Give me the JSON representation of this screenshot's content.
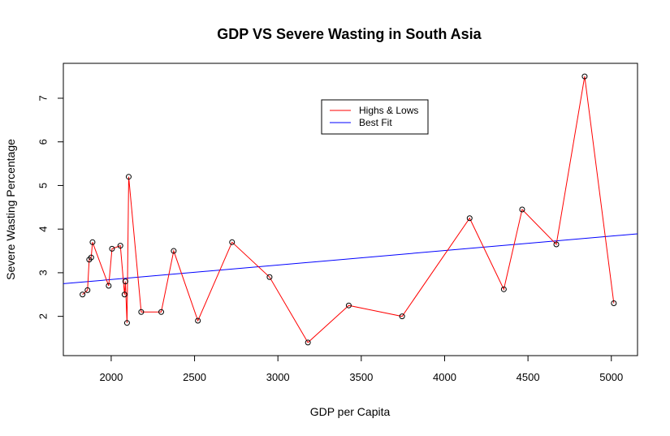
{
  "chart_data": {
    "type": "line",
    "title": "GDP VS Severe Wasting in South Asia",
    "xlabel": "GDP per Capita",
    "ylabel": "Severe Wasting Percentage",
    "xlim": [
      1713,
      5157
    ],
    "ylim": [
      1.1,
      7.8
    ],
    "x_ticks": [
      2000,
      2500,
      3000,
      3500,
      4000,
      4500,
      5000
    ],
    "y_ticks": [
      2,
      3,
      4,
      5,
      6,
      7
    ],
    "grid": false,
    "legend_position": "top-center",
    "series": [
      {
        "name": "Highs & Lows",
        "color": "#ff0000",
        "points": [
          {
            "x": 1828,
            "y": 2.5
          },
          {
            "x": 1858,
            "y": 2.6
          },
          {
            "x": 1868,
            "y": 3.3
          },
          {
            "x": 1880,
            "y": 3.35
          },
          {
            "x": 1888,
            "y": 3.7
          },
          {
            "x": 1985,
            "y": 2.7
          },
          {
            "x": 2005,
            "y": 3.55
          },
          {
            "x": 2055,
            "y": 3.62
          },
          {
            "x": 2080,
            "y": 2.5
          },
          {
            "x": 2085,
            "y": 2.8
          },
          {
            "x": 2095,
            "y": 1.85
          },
          {
            "x": 2105,
            "y": 5.2
          },
          {
            "x": 2180,
            "y": 2.1
          },
          {
            "x": 2300,
            "y": 2.1
          },
          {
            "x": 2375,
            "y": 3.5
          },
          {
            "x": 2520,
            "y": 1.9
          },
          {
            "x": 2725,
            "y": 3.7
          },
          {
            "x": 2950,
            "y": 2.9
          },
          {
            "x": 3180,
            "y": 1.4
          },
          {
            "x": 3425,
            "y": 2.25
          },
          {
            "x": 3745,
            "y": 2.0
          },
          {
            "x": 4150,
            "y": 4.25
          },
          {
            "x": 4355,
            "y": 2.62
          },
          {
            "x": 4465,
            "y": 4.45
          },
          {
            "x": 4670,
            "y": 3.65
          },
          {
            "x": 4840,
            "y": 7.5
          },
          {
            "x": 5015,
            "y": 2.3
          }
        ]
      },
      {
        "name": "Best Fit",
        "color": "#0000ff",
        "line": {
          "slope": 0.000332,
          "intercept": 2.18
        }
      }
    ]
  }
}
